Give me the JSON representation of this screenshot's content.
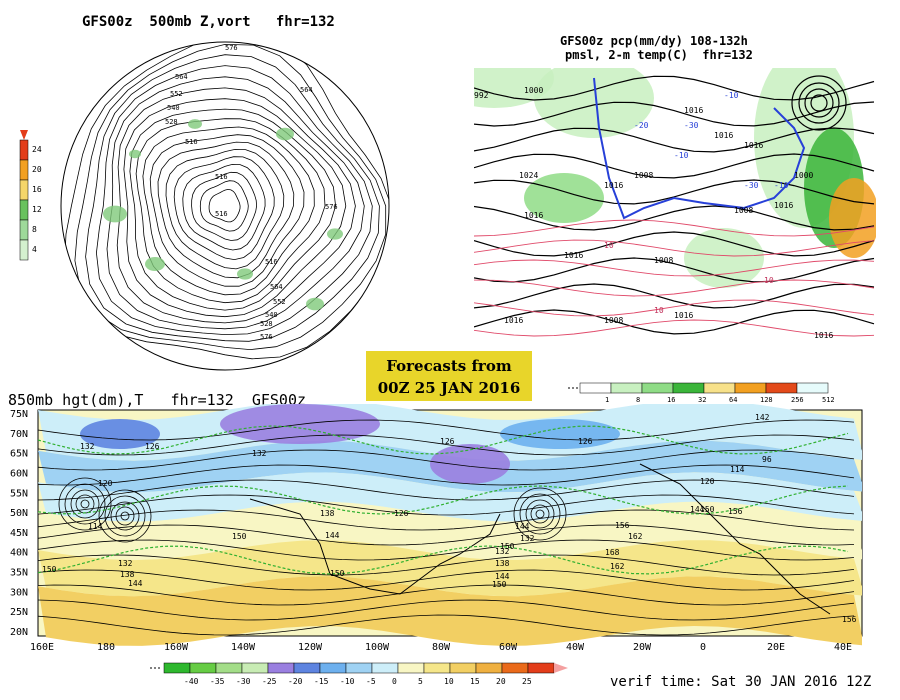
{
  "panels": {
    "top_left": {
      "title": "GFS00z  500mb Z,vort   fhr=132",
      "colorbar": {
        "ticks": [
          "24",
          "20",
          "16",
          "12",
          "8",
          "4"
        ],
        "colors": [
          "#e33d1a",
          "#f2a021",
          "#f5d66a",
          "#69c25e",
          "#9ed99a",
          "#d4f0cf"
        ]
      },
      "contour_labels": [
        "576",
        "564",
        "552",
        "540",
        "528",
        "516",
        "516",
        "564",
        "516",
        "576",
        "516",
        "564",
        "552",
        "540",
        "528",
        "576"
      ]
    },
    "top_right": {
      "title_line1": "GFS00z pcp(mm/dy) 108-132h",
      "title_line2": "pmsl, 2-m temp(C)  fhr=132",
      "labels": [
        "992",
        "1000",
        "1024",
        "1016",
        "1016",
        "1016",
        "1008",
        "1016",
        "1016",
        "1016",
        "1008",
        "1016",
        "1008",
        "1016",
        "1008",
        "1016",
        "1016",
        "1000",
        "10",
        "10",
        "10",
        "-10",
        "-30",
        "-20",
        "-10",
        "-30",
        "-10"
      ],
      "colorbar": {
        "ticks": [
          "1",
          "8",
          "16",
          "32",
          "64",
          "128",
          "256",
          "512"
        ],
        "colors": [
          "#ffffff",
          "#c8f0c0",
          "#8fdc86",
          "#3bb53a",
          "#f7e18a",
          "#f2a021",
          "#e34a1a",
          "#e6fbfb"
        ]
      }
    },
    "bottom": {
      "title": "850mb hgt(dm),T   fhr=132  GFS00z",
      "lat_labels": [
        "75N",
        "70N",
        "65N",
        "60N",
        "55N",
        "50N",
        "45N",
        "40N",
        "35N",
        "30N",
        "25N",
        "20N"
      ],
      "lon_labels": [
        "160E",
        "180",
        "160W",
        "140W",
        "120W",
        "100W",
        "80W",
        "60W",
        "40W",
        "20W",
        "0",
        "20E",
        "40E"
      ],
      "height_labels": [
        "132",
        "126",
        "132",
        "126",
        "120",
        "114",
        "150",
        "150",
        "132",
        "138",
        "144",
        "138",
        "144",
        "150",
        "126",
        "144",
        "150",
        "132",
        "132",
        "138",
        "144",
        "150",
        "126",
        "156",
        "162",
        "168",
        "162",
        "114",
        "120",
        "96",
        "144",
        "150",
        "156",
        "142",
        "156"
      ],
      "temp_colorbar": {
        "ticks": [
          "-40",
          "-35",
          "-30",
          "-25",
          "-20",
          "-15",
          "-10",
          "-5",
          "0",
          "5",
          "10",
          "15",
          "20",
          "25"
        ],
        "colors": [
          "#2eb82e",
          "#66cc44",
          "#a3dd88",
          "#c8ecb4",
          "#9a7fe0",
          "#5e84e0",
          "#6db0ee",
          "#9fd2f3",
          "#cdeef9",
          "#f8f6c4",
          "#f5e68a",
          "#f2cf63",
          "#efb040",
          "#ea6a1a",
          "#e33d1a"
        ]
      }
    }
  },
  "forecast_box": {
    "line1": "Forecasts from",
    "line2": "00Z 25 JAN 2016"
  },
  "verif_time": "verif time: Sat 30 JAN 2016 12Z"
}
